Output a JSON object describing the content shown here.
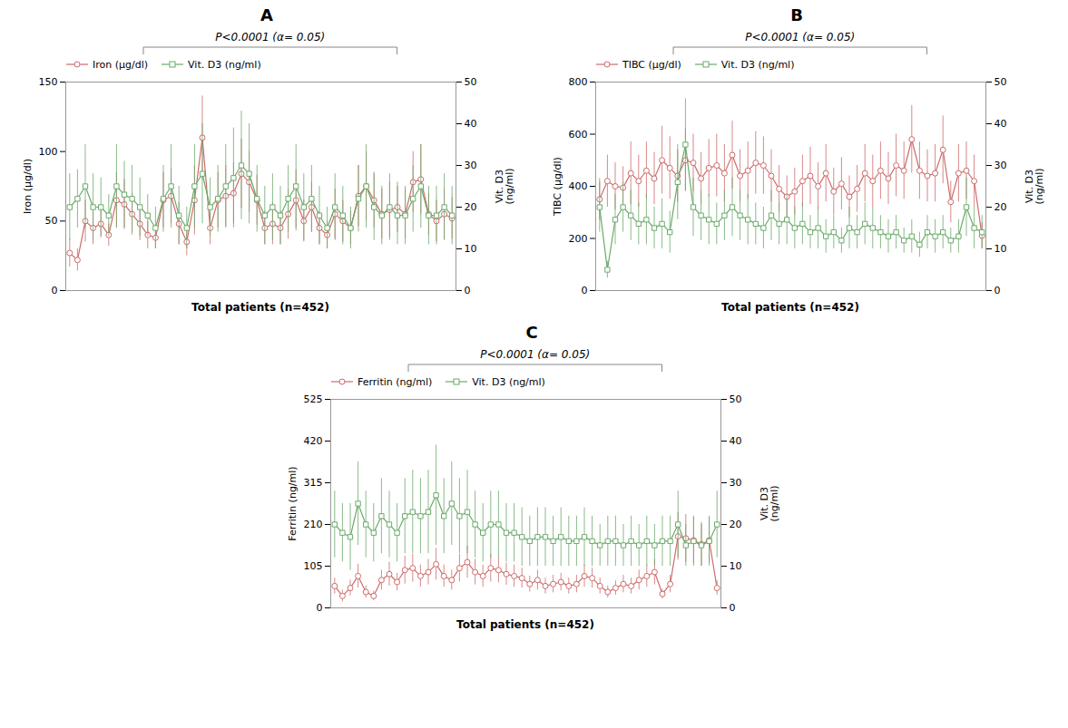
{
  "chart_data": [
    {
      "type": "line",
      "title": "A",
      "annotation": "P<0.0001 (α= 0.05)",
      "xlabel": "Total patients (n=452)",
      "ylabel": "Iron (μg/dl)",
      "y2label": "Vit. D3\n(ng/ml)",
      "x": [
        1,
        2,
        3,
        4,
        5,
        6,
        7,
        8,
        9,
        10,
        11,
        12,
        13,
        14,
        15,
        16,
        17,
        18,
        19,
        20,
        21,
        22,
        23,
        24,
        25,
        26,
        27,
        28,
        29,
        30,
        31,
        32,
        33,
        34,
        35,
        36,
        37,
        38,
        39,
        40,
        41,
        42,
        43,
        44,
        45,
        46,
        47,
        48,
        49,
        50
      ],
      "xlim": [
        0.5,
        50.5
      ],
      "xticks": [],
      "ylim": [
        0,
        150
      ],
      "yticks": [
        0,
        50,
        100,
        150
      ],
      "y2lim": [
        0,
        50
      ],
      "y2ticks": [
        0,
        10,
        20,
        30,
        40,
        50
      ],
      "legend": "upper left",
      "series": [
        {
          "name": "Iron (μg/dl)",
          "color": "#cd6b6b",
          "marker": "o",
          "values": [
            27,
            22,
            50,
            45,
            48,
            40,
            65,
            62,
            55,
            48,
            40,
            38,
            65,
            68,
            48,
            35,
            65,
            110,
            45,
            65,
            68,
            70,
            84,
            78,
            65,
            45,
            48,
            45,
            55,
            65,
            50,
            60,
            45,
            40,
            55,
            50,
            45,
            68,
            75,
            65,
            55,
            58,
            60,
            55,
            78,
            80,
            55,
            50,
            55,
            52
          ],
          "errors": [
            10,
            8,
            15,
            12,
            10,
            8,
            20,
            18,
            15,
            12,
            10,
            8,
            20,
            20,
            15,
            10,
            25,
            30,
            12,
            20,
            22,
            22,
            25,
            22,
            18,
            12,
            15,
            12,
            18,
            22,
            15,
            18,
            12,
            10,
            18,
            15,
            12,
            22,
            25,
            20,
            18,
            20,
            18,
            18,
            22,
            25,
            15,
            15,
            18,
            15
          ]
        },
        {
          "name": "Vit. D3 (ng/ml)",
          "color": "#6aaa6a",
          "marker": "s",
          "axis": "y2",
          "values": [
            20,
            22,
            25,
            20,
            20,
            18,
            25,
            23,
            22,
            20,
            18,
            15,
            22,
            25,
            18,
            15,
            25,
            28,
            20,
            22,
            25,
            27,
            30,
            28,
            22,
            18,
            20,
            18,
            22,
            25,
            20,
            22,
            18,
            15,
            20,
            18,
            15,
            22,
            25,
            20,
            18,
            20,
            18,
            18,
            22,
            25,
            18,
            18,
            20,
            18
          ],
          "errors": [
            8,
            7,
            10,
            8,
            7,
            5,
            10,
            8,
            8,
            7,
            5,
            5,
            8,
            10,
            7,
            5,
            10,
            12,
            7,
            8,
            10,
            12,
            13,
            12,
            8,
            7,
            8,
            7,
            8,
            10,
            8,
            8,
            7,
            5,
            8,
            7,
            5,
            8,
            10,
            8,
            7,
            8,
            7,
            7,
            8,
            10,
            7,
            7,
            8,
            7
          ]
        }
      ]
    },
    {
      "type": "line",
      "title": "B",
      "annotation": "P<0.0001 (α= 0.05)",
      "xlabel": "Total patients (n=452)",
      "ylabel": "TIBC (μg/dl)",
      "y2label": "Vit. D3\n(ng/ml)",
      "x": [
        1,
        2,
        3,
        4,
        5,
        6,
        7,
        8,
        9,
        10,
        11,
        12,
        13,
        14,
        15,
        16,
        17,
        18,
        19,
        20,
        21,
        22,
        23,
        24,
        25,
        26,
        27,
        28,
        29,
        30,
        31,
        32,
        33,
        34,
        35,
        36,
        37,
        38,
        39,
        40,
        41,
        42,
        43,
        44,
        45,
        46,
        47,
        48,
        49,
        50
      ],
      "xlim": [
        0.5,
        50.5
      ],
      "xticks": [],
      "ylim": [
        0,
        800
      ],
      "yticks": [
        0,
        200,
        400,
        600,
        800
      ],
      "y2lim": [
        0,
        50
      ],
      "y2ticks": [
        0,
        10,
        20,
        30,
        40,
        50
      ],
      "legend": "upper left",
      "series": [
        {
          "name": "TIBC (μg/dl)",
          "color": "#cd6b6b",
          "marker": "o",
          "values": [
            350,
            420,
            400,
            395,
            450,
            420,
            460,
            430,
            500,
            470,
            440,
            500,
            490,
            430,
            470,
            480,
            450,
            520,
            440,
            460,
            490,
            480,
            440,
            390,
            360,
            380,
            420,
            440,
            400,
            450,
            380,
            410,
            360,
            390,
            450,
            420,
            460,
            430,
            480,
            460,
            580,
            460,
            440,
            450,
            540,
            340,
            450,
            460,
            420,
            210
          ],
          "errors": [
            80,
            100,
            90,
            80,
            120,
            100,
            110,
            100,
            130,
            120,
            100,
            120,
            110,
            100,
            110,
            120,
            110,
            130,
            100,
            110,
            120,
            110,
            100,
            90,
            80,
            90,
            100,
            110,
            90,
            110,
            90,
            100,
            80,
            90,
            110,
            100,
            110,
            100,
            120,
            110,
            130,
            110,
            100,
            110,
            130,
            80,
            110,
            110,
            100,
            50
          ]
        },
        {
          "name": "Vit. D3 (ng/ml)",
          "color": "#6aaa6a",
          "marker": "s",
          "axis": "y2",
          "values": [
            20,
            5,
            17,
            20,
            18,
            16,
            17,
            15,
            16,
            14,
            26,
            35,
            20,
            18,
            17,
            16,
            18,
            20,
            18,
            17,
            16,
            15,
            18,
            16,
            17,
            15,
            16,
            14,
            15,
            13,
            14,
            12,
            15,
            14,
            16,
            15,
            14,
            13,
            14,
            12,
            13,
            11,
            14,
            13,
            14,
            12,
            13,
            20,
            15,
            14
          ],
          "errors": [
            6,
            2,
            6,
            6,
            6,
            5,
            6,
            5,
            6,
            5,
            9,
            11,
            7,
            6,
            6,
            5,
            6,
            7,
            6,
            6,
            5,
            5,
            6,
            5,
            6,
            5,
            5,
            4,
            5,
            4,
            4,
            3,
            5,
            4,
            5,
            5,
            4,
            4,
            4,
            3,
            4,
            3,
            4,
            4,
            4,
            3,
            4,
            7,
            5,
            4
          ]
        }
      ]
    },
    {
      "type": "line",
      "title": "C",
      "annotation": "P<0.0001 (α= 0.05)",
      "xlabel": "Total patients (n=452)",
      "ylabel": "Ferritin (ng/ml)",
      "y2label": "Vit. D3\n(ng/ml)",
      "x": [
        1,
        2,
        3,
        4,
        5,
        6,
        7,
        8,
        9,
        10,
        11,
        12,
        13,
        14,
        15,
        16,
        17,
        18,
        19,
        20,
        21,
        22,
        23,
        24,
        25,
        26,
        27,
        28,
        29,
        30,
        31,
        32,
        33,
        34,
        35,
        36,
        37,
        38,
        39,
        40,
        41,
        42,
        43,
        44,
        45,
        46,
        47,
        48,
        49,
        50
      ],
      "xlim": [
        0.5,
        50.5
      ],
      "xticks": [],
      "ylim": [
        0,
        525
      ],
      "yticks": [
        0,
        105,
        210,
        315,
        420,
        525
      ],
      "y2lim": [
        0,
        50
      ],
      "y2ticks": [
        0,
        10,
        20,
        30,
        40,
        50
      ],
      "legend": "upper left",
      "series": [
        {
          "name": "Ferritin (ng/ml)",
          "color": "#cd6b6b",
          "marker": "o",
          "values": [
            55,
            30,
            50,
            80,
            40,
            30,
            70,
            85,
            65,
            95,
            100,
            80,
            90,
            110,
            80,
            70,
            100,
            115,
            90,
            80,
            100,
            95,
            85,
            80,
            75,
            60,
            70,
            55,
            60,
            65,
            55,
            60,
            80,
            75,
            55,
            40,
            50,
            60,
            55,
            70,
            80,
            90,
            35,
            60,
            180,
            175,
            170,
            160,
            170,
            50
          ],
          "errors": [
            20,
            15,
            20,
            30,
            15,
            12,
            25,
            30,
            22,
            35,
            35,
            28,
            32,
            40,
            28,
            25,
            35,
            40,
            32,
            28,
            35,
            32,
            28,
            28,
            25,
            20,
            25,
            20,
            22,
            22,
            20,
            22,
            28,
            25,
            20,
            15,
            18,
            22,
            20,
            25,
            28,
            32,
            12,
            22,
            60,
            60,
            58,
            55,
            58,
            18
          ]
        },
        {
          "name": "Vit. D3 (ng/ml)",
          "color": "#6aaa6a",
          "marker": "s",
          "axis": "y2",
          "values": [
            20,
            18,
            17,
            25,
            20,
            18,
            22,
            20,
            18,
            22,
            23,
            22,
            23,
            27,
            22,
            25,
            22,
            23,
            20,
            18,
            20,
            20,
            18,
            18,
            17,
            16,
            17,
            17,
            16,
            17,
            16,
            16,
            17,
            16,
            15,
            16,
            16,
            15,
            16,
            15,
            16,
            15,
            16,
            16,
            20,
            15,
            16,
            15,
            16,
            20
          ],
          "errors": [
            8,
            7,
            8,
            10,
            8,
            7,
            9,
            8,
            7,
            9,
            10,
            9,
            10,
            12,
            9,
            10,
            9,
            10,
            8,
            7,
            8,
            8,
            7,
            7,
            7,
            6,
            7,
            7,
            6,
            7,
            6,
            6,
            7,
            6,
            5,
            6,
            6,
            5,
            6,
            5,
            6,
            5,
            6,
            6,
            8,
            5,
            6,
            5,
            6,
            8
          ]
        }
      ]
    }
  ]
}
